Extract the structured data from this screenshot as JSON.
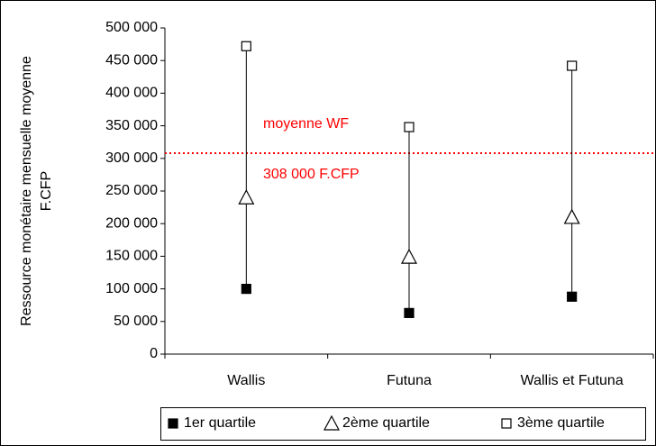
{
  "chart_data": {
    "type": "range",
    "y_label": [
      "Ressource monétaire mensuelle moyenne",
      "F.CFP"
    ],
    "categories": [
      "Wallis",
      "Futuna",
      "Wallis et Futuna"
    ],
    "series": [
      {
        "name": "1er quartile",
        "color": "#000000",
        "marker": "filled-square",
        "values": [
          100000,
          63000,
          88000
        ]
      },
      {
        "name": "2ème quartile",
        "color": "#000000",
        "marker": "open-triangle",
        "values": [
          240000,
          149000,
          210000
        ]
      },
      {
        "name": "3ème quartile",
        "color": "#000000",
        "marker": "open-square",
        "values": [
          472000,
          348000,
          442000
        ]
      }
    ],
    "ylim": [
      0,
      500000
    ],
    "yticks": [
      0,
      {
        "value": 50000,
        "label": "50 000"
      },
      {
        "value": 100000,
        "label": "100 000"
      },
      {
        "value": 150000,
        "label": "150 000"
      },
      {
        "value": 200000,
        "label": "200 000"
      },
      {
        "value": 250000,
        "label": "250 000"
      },
      {
        "value": 300000,
        "label": "300 000"
      },
      {
        "value": 350000,
        "label": "350 000"
      },
      {
        "value": 400000,
        "label": "400 000"
      },
      {
        "value": 450000,
        "label": "450 000"
      },
      {
        "value": 500000,
        "label": "500 000"
      }
    ],
    "reference_line": {
      "value": 308000,
      "color": "#ff0000",
      "label": "moyenne WF",
      "value_label": "308 000 F.CFP"
    },
    "legend": "bottom"
  }
}
